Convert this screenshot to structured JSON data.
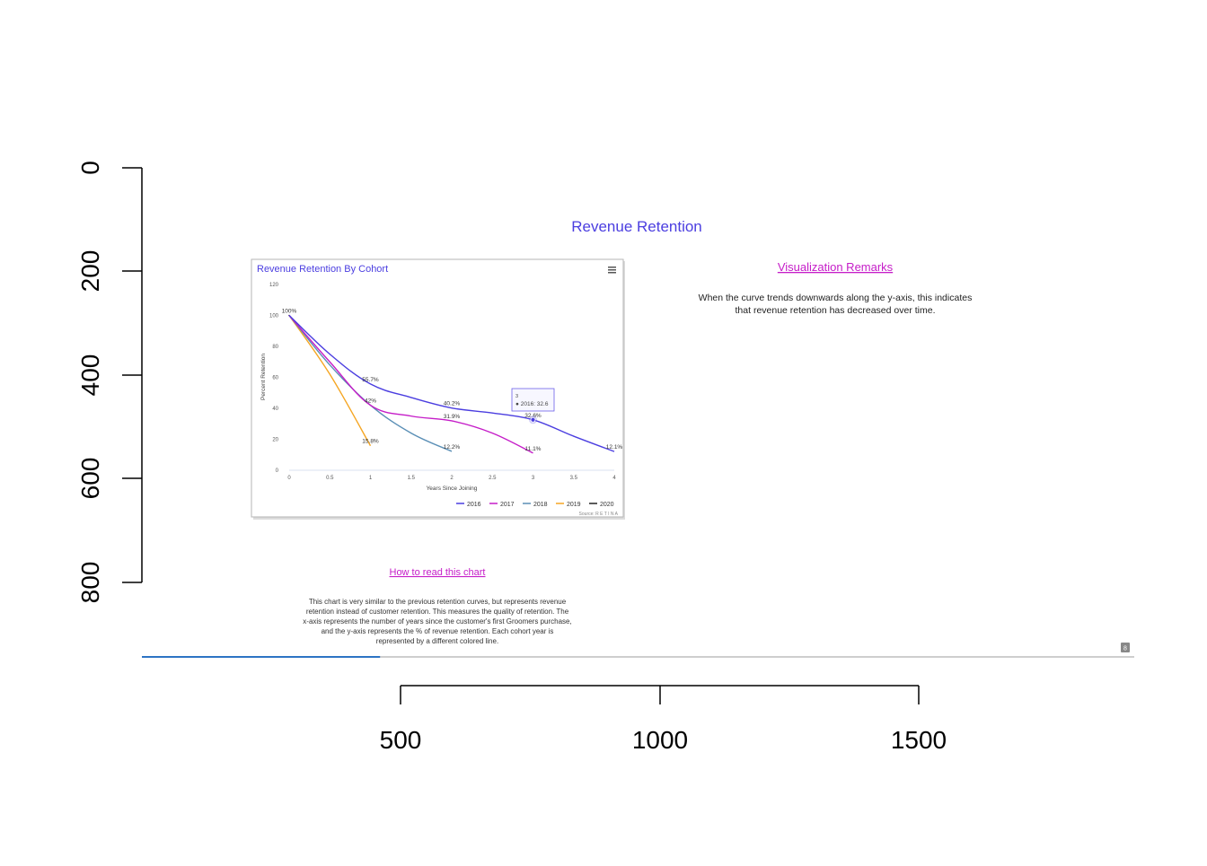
{
  "outer_plot": {
    "x_ticks": [
      "500",
      "1000",
      "1500"
    ],
    "y_ticks": [
      "0",
      "200",
      "400",
      "600",
      "800"
    ]
  },
  "page": {
    "title": "Revenue Retention",
    "remarks_heading": "Visualization Remarks",
    "remarks_text": [
      "When the curve trends downwards along the y-axis, this indicates",
      "that revenue retention has decreased over time."
    ],
    "how_to_heading": "How to read this chart",
    "how_to_text": [
      "This chart is very similar to the previous retention curves, but represents revenue",
      "retention instead of customer retention. This measures the quality of retention. The",
      "x-axis represents the number of years since the customer's first Groomers purchase,",
      "and the y-axis represents the % of revenue retention. Each cohort year is",
      "represented by a different colored line."
    ],
    "page_badge": "8",
    "progress_fraction": 0.24
  },
  "chart_card": {
    "title": "Revenue Retention By Cohort",
    "menu_icon": "hamburger-menu-icon",
    "source": "Source: R E T I N A",
    "tooltip_header": "3",
    "tooltip_value": "● 2016: 32.6"
  },
  "chart_data": {
    "type": "line",
    "title": "Revenue Retention By Cohort",
    "xlabel": "Years Since Joining",
    "ylabel": "Percent Retention",
    "xlim": [
      0,
      4
    ],
    "ylim": [
      0,
      120
    ],
    "x_ticks": [
      "0",
      "0.5",
      "1",
      "1.5",
      "2",
      "2.5",
      "3",
      "3.5",
      "4"
    ],
    "y_ticks": [
      "0",
      "20",
      "40",
      "60",
      "80",
      "100",
      "120"
    ],
    "legend_position": "bottom-right",
    "series": [
      {
        "name": "2016",
        "color": "#4b3ee0",
        "x": [
          0,
          0.5,
          1,
          1.5,
          2,
          2.5,
          3,
          3.5,
          4
        ],
        "y": [
          100,
          75,
          55.7,
          47,
          40.2,
          37,
          32.6,
          22,
          12.1
        ],
        "labels": [
          {
            "x": 1,
            "y": 55.7,
            "text": "55.7%"
          },
          {
            "x": 2,
            "y": 40.2,
            "text": "40.2%"
          },
          {
            "x": 3,
            "y": 32.6,
            "text": "32.6%"
          },
          {
            "x": 4,
            "y": 12.1,
            "text": "12.1%"
          }
        ]
      },
      {
        "name": "2017",
        "color": "#c51dc8",
        "x": [
          0,
          0.5,
          1,
          1.5,
          2,
          2.5,
          3
        ],
        "y": [
          100,
          70,
          42,
          35,
          31.9,
          24,
          11.1
        ],
        "labels": [
          {
            "x": 1,
            "y": 42,
            "text": "42%"
          },
          {
            "x": 2,
            "y": 31.9,
            "text": "31.9%"
          },
          {
            "x": 3,
            "y": 11.1,
            "text": "11.1%"
          }
        ]
      },
      {
        "name": "2018",
        "color": "#5a8fb6",
        "x": [
          0,
          0.5,
          1,
          1.5,
          2
        ],
        "y": [
          100,
          68,
          42,
          24,
          12.2
        ],
        "labels": [
          {
            "x": 2,
            "y": 12.2,
            "text": "12.2%"
          }
        ]
      },
      {
        "name": "2019",
        "color": "#f5a623",
        "x": [
          0,
          0.5,
          1
        ],
        "y": [
          100,
          62,
          15.8
        ],
        "labels": [
          {
            "x": 1,
            "y": 15.8,
            "text": "15.8%"
          }
        ]
      },
      {
        "name": "2020",
        "color": "#222222",
        "x": [
          0
        ],
        "y": [
          100
        ],
        "labels": [
          {
            "x": 0,
            "y": 100,
            "text": "100%"
          }
        ]
      }
    ],
    "highlight": {
      "series": "2016",
      "x": 3,
      "y": 32.6
    }
  }
}
